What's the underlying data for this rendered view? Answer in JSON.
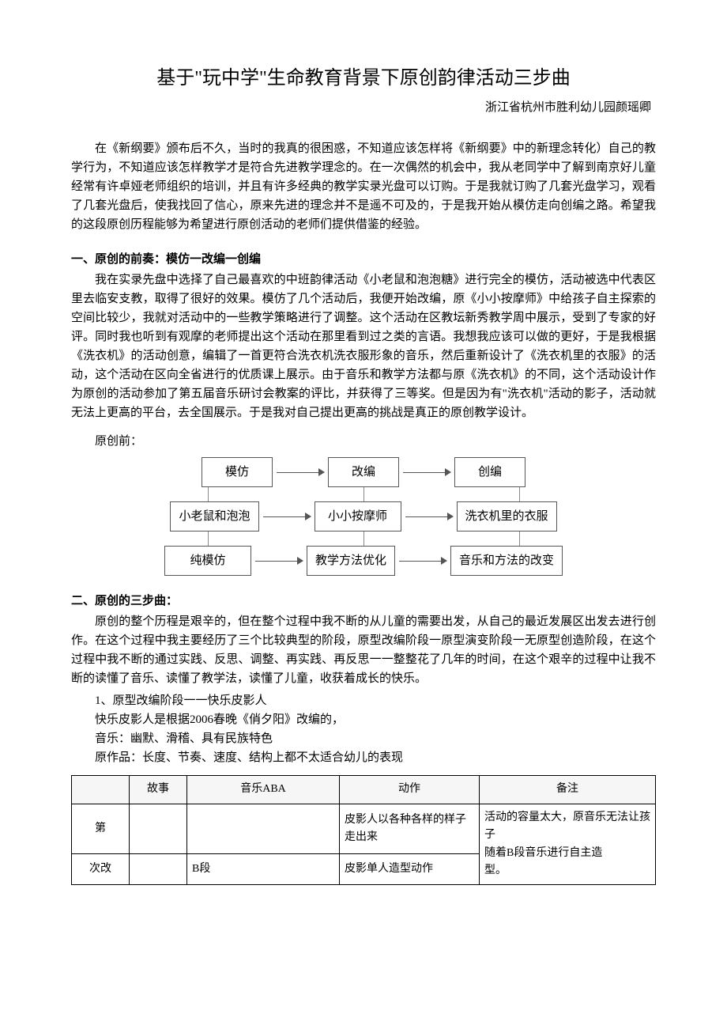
{
  "title": "基于\"玩中学\"生命教育背景下原创韵律活动三步曲",
  "author": "浙江省杭州市胜利幼儿园颜瑶卿",
  "intro": "在《新纲要》颁布后不久，当时的我真的很困惑，不知道应该怎样将《新纲要》中的新理念转化）自己的教学行为，不知道应该怎样教学才是符合先进教学理念的。在一次偶然的机会中，我从老同学中了解到南京好儿童经常有许卓娅老师组织的培训，并且有许多经典的教学实录光盘可以订购。于是我就订购了几套光盘学习，观看了几套光盘后，使我找回了信心，原来先进的理念并不是遥不可及的，于是我开始从模仿走向创编之路。希望我的这段原创历程能够为希望进行原创活动的老师们提供借鉴的经验。",
  "sec1": {
    "heading": "一、原创的前奏：模仿一改编一创编",
    "body": "我在实录先盘中选择了自己最喜欢的中班韵律活动《小老鼠和泡泡糖》进行完全的模仿，活动被选中代表区里去临安支教，取得了很好的效果。模仿了几个活动后，我便开始改编，原《小小按摩师》中给孩子自主探索的空间比较少，我就对活动中的一些教学策略进行了调整。这个活动在区教坛新秀教学周中展示，受到了专家的好评。同时我也听到有观摩的老师提出这个活动在那里看到过之类的言语。我想我应该可以做的更好，于是我根据《洗衣机》的活动创意，编辑了一首更符合洗衣机洗衣服形象的音乐，然后重新设计了《洗衣机里的衣服》的活动，这个活动在区向全省进行的优质课上展示。由于音乐和教学方法都与原《洗衣机》的不同，这个活动设计作为原创的活动参加了第五届音乐研讨会教案的评比，并获得了三等奖。但是因为有\"洗衣机\"活动的影子，活动就无法上更高的平台，去全国展示。于是我对自己提出更高的挑战是真正的原创教学设计。"
  },
  "pre_label": "原创前：",
  "flow": {
    "row1": [
      "模仿",
      "改编",
      "创编"
    ],
    "row2": [
      "小老鼠和泡泡",
      "小小按摩师",
      "洗衣机里的衣服"
    ],
    "row3": [
      "纯模仿",
      "教学方法优化",
      "音乐和方法的改变"
    ]
  },
  "sec2": {
    "heading": "二、原创的三步曲：",
    "body": "原创的整个历程是艰辛的，但在整个过程中我不断的从儿童的需要出发，从自己的最近发展区出发去进行创作。在这个过程中我主要经历了三个比较典型的阶段，原型改编阶段一原型演变阶段一无原型创造阶段，在这个过程中我不断的通过实践、反思、调整、再实践、再反思一一整整花了几年的时间，在这个艰辛的过程中让我不断的读懂了音乐、读懂了教学法，读懂了儿童，收获着成长的快乐。",
    "item1_title": "1、原型改编阶段一一快乐皮影人",
    "item1_l2": "快乐皮影人是根据2006春晚《俏夕阳》改编的，",
    "item1_l3": "音乐：幽默、滑稽、具有民族特色",
    "item1_l4": "原作品：长度、节奏、速度、结构上都不太适合幼儿的表现"
  },
  "table": {
    "headers": [
      "",
      "故事",
      "音乐ABA",
      "动作",
      "备注"
    ],
    "rows": [
      {
        "c0": "第",
        "c1": "",
        "c2": "",
        "c3": "皮影人以各种各样的样子走出来",
        "c4_top": "活动的容量太大，原音乐无法让孩子",
        "c4_bottom": "随着B段音乐进行自主造"
      },
      {
        "c0": "次改",
        "c1": "",
        "c2": "B段",
        "c3": "皮影单人造型动作",
        "c4_extra": "型。"
      }
    ]
  }
}
